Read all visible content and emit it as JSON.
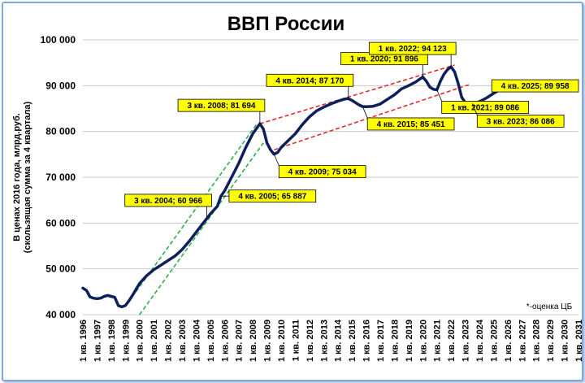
{
  "chart_data": {
    "type": "line",
    "title": "ВВП России",
    "ylabel_line1": "В ценах 2016 года, млрд.руб.",
    "ylabel_line2": "(скользящая сумма за 4 квартала)",
    "note": "*-оценка ЦБ",
    "ylim": [
      40000,
      100000
    ],
    "yticks": [
      40000,
      50000,
      60000,
      70000,
      80000,
      90000,
      100000
    ],
    "ytick_labels": [
      "40 000",
      "50 000",
      "60 000",
      "70 000",
      "80 000",
      "90 000",
      "100 000"
    ],
    "xlim": [
      "1 кв. 1996",
      "1 кв. 2031"
    ],
    "xtick_labels": [
      "1 кв. 1996",
      "1 кв. 1997",
      "1 кв. 1998",
      "1 кв. 1999",
      "1 кв. 2000",
      "1 кв. 2001",
      "1 кв. 2002",
      "1 кв. 2003",
      "1 кв. 2004",
      "1 кв. 2005",
      "1 кв. 2006",
      "1 кв. 2007",
      "1 кв. 2008",
      "1 кв. 2009",
      "1 кв. 2010",
      "1 кв. 2011",
      "1 кв. 2012",
      "1 кв. 2013",
      "1 кв. 2014",
      "1 кв. 2015",
      "1 кв. 2016",
      "1 кв. 2017",
      "1 кв. 2018",
      "1 кв. 2019",
      "1 кв. 2020",
      "1 кв. 2021",
      "1 кв. 2022",
      "1 кв. 2023",
      "1 кв. 2024",
      "1 кв. 2025",
      "1 кв. 2026",
      "1 кв. 2027",
      "1 кв. 2028",
      "1 кв. 2029",
      "1 кв. 2030",
      "1 кв. 2031"
    ],
    "grid": true,
    "series": [
      {
        "color": "#0d1f5c",
        "points": [
          [
            1996.0,
            45800
          ],
          [
            1996.25,
            45300
          ],
          [
            1996.5,
            43900
          ],
          [
            1996.75,
            43600
          ],
          [
            1997.0,
            43500
          ],
          [
            1997.25,
            43600
          ],
          [
            1997.5,
            44000
          ],
          [
            1997.75,
            44200
          ],
          [
            1998.0,
            44000
          ],
          [
            1998.25,
            43800
          ],
          [
            1998.5,
            42000
          ],
          [
            1998.75,
            41700
          ],
          [
            1999.0,
            42000
          ],
          [
            1999.25,
            43000
          ],
          [
            1999.5,
            44200
          ],
          [
            1999.75,
            45500
          ],
          [
            2000.0,
            46800
          ],
          [
            2000.5,
            48500
          ],
          [
            2001.0,
            49800
          ],
          [
            2001.5,
            50800
          ],
          [
            2002.0,
            51800
          ],
          [
            2002.5,
            52800
          ],
          [
            2003.0,
            54200
          ],
          [
            2003.5,
            56000
          ],
          [
            2004.0,
            58000
          ],
          [
            2004.5,
            60000
          ],
          [
            2004.75,
            60966
          ],
          [
            2005.0,
            62000
          ],
          [
            2005.5,
            63700
          ],
          [
            2005.75,
            65887
          ],
          [
            2006.0,
            67000
          ],
          [
            2006.5,
            70000
          ],
          [
            2007.0,
            73000
          ],
          [
            2007.5,
            76500
          ],
          [
            2008.0,
            79500
          ],
          [
            2008.5,
            81694
          ],
          [
            2008.75,
            80500
          ],
          [
            2009.0,
            77500
          ],
          [
            2009.25,
            76000
          ],
          [
            2009.5,
            75034
          ],
          [
            2009.75,
            75400
          ],
          [
            2010.0,
            76500
          ],
          [
            2010.5,
            78000
          ],
          [
            2011.0,
            79500
          ],
          [
            2011.5,
            81500
          ],
          [
            2012.0,
            83200
          ],
          [
            2012.5,
            84500
          ],
          [
            2013.0,
            85300
          ],
          [
            2013.5,
            86000
          ],
          [
            2014.0,
            86600
          ],
          [
            2014.5,
            87100
          ],
          [
            2014.75,
            87170
          ],
          [
            2015.0,
            86800
          ],
          [
            2015.5,
            85800
          ],
          [
            2015.75,
            85451
          ],
          [
            2016.0,
            85400
          ],
          [
            2016.5,
            85500
          ],
          [
            2017.0,
            86000
          ],
          [
            2017.5,
            87000
          ],
          [
            2018.0,
            88000
          ],
          [
            2018.5,
            89300
          ],
          [
            2019.0,
            90000
          ],
          [
            2019.5,
            90800
          ],
          [
            2020.0,
            91896
          ],
          [
            2020.25,
            91000
          ],
          [
            2020.5,
            89700
          ],
          [
            2020.75,
            89200
          ],
          [
            2021.0,
            89086
          ],
          [
            2021.25,
            91000
          ],
          [
            2021.5,
            92500
          ],
          [
            2021.75,
            93500
          ],
          [
            2022.0,
            94123
          ],
          [
            2022.25,
            93000
          ],
          [
            2022.5,
            90500
          ],
          [
            2022.75,
            87500
          ],
          [
            2023.0,
            86300
          ],
          [
            2023.5,
            86086
          ],
          [
            2024.0,
            86500
          ],
          [
            2024.5,
            87300
          ],
          [
            2025.0,
            88300
          ],
          [
            2025.5,
            89200
          ],
          [
            2025.75,
            89958
          ]
        ]
      }
    ],
    "trend_lines": [
      {
        "color": "#2db04a",
        "style": "dashed",
        "from": [
          1999.75,
          45000
        ],
        "to": [
          2008.25,
          81500
        ]
      },
      {
        "color": "#2db04a",
        "style": "dashed",
        "from": [
          2000.0,
          40000
        ],
        "to": [
          2008.75,
          77500
        ]
      },
      {
        "color": "#e52a2a",
        "style": "dashed",
        "from": [
          2008.5,
          81694
        ],
        "to": [
          2022.25,
          94500
        ]
      },
      {
        "color": "#e52a2a",
        "style": "dashed",
        "from": [
          2009.5,
          76000
        ],
        "to": [
          2023.25,
          90200
        ]
      }
    ],
    "annotations": [
      {
        "text": "3 кв. 2004; 60 966",
        "x": 2004.75,
        "y": 60966,
        "color": "#ffff00",
        "placement": "upper-left"
      },
      {
        "text": "4 кв. 2005; 65 887",
        "x": 2005.75,
        "y": 65887,
        "color": "#ffff00",
        "placement": "right"
      },
      {
        "text": "3 кв. 2008; 81 694",
        "x": 2008.5,
        "y": 81694,
        "color": "#ffff00",
        "placement": "upper-left"
      },
      {
        "text": "4 кв. 2009; 75 034",
        "x": 2009.5,
        "y": 75034,
        "color": "#ffff00",
        "placement": "lower-right"
      },
      {
        "text": "4 кв. 2014; 87 170",
        "x": 2014.75,
        "y": 87170,
        "color": "#ffff00",
        "placement": "upper-left"
      },
      {
        "text": "4 кв. 2015; 85 451",
        "x": 2015.75,
        "y": 85451,
        "color": "#ffff00",
        "placement": "lower-right"
      },
      {
        "text": "1 кв. 2020; 91 896",
        "x": 2020.0,
        "y": 91896,
        "color": "#ffff00",
        "placement": "upper-left"
      },
      {
        "text": "1 кв. 2021; 89 086",
        "x": 2021.0,
        "y": 89086,
        "color": "#ffff00",
        "placement": "lower-right"
      },
      {
        "text": "1 кв. 2022; 94 123",
        "x": 2022.0,
        "y": 94123,
        "color": "#ffff00",
        "placement": "upper-left"
      },
      {
        "text": "3 кв. 2023; 86 086",
        "x": 2023.5,
        "y": 86086,
        "color": "#ffff00",
        "placement": "lower-right"
      },
      {
        "text": "4 кв. 2025; 89 958",
        "x": 2025.75,
        "y": 89958,
        "color": "#ffff00",
        "placement": "right"
      }
    ]
  }
}
